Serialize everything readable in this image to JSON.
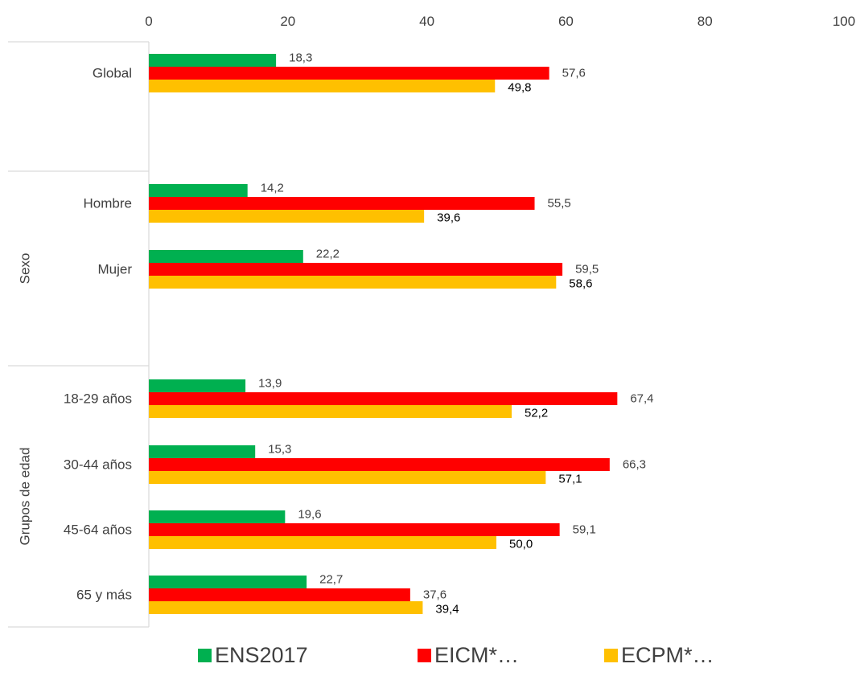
{
  "chart_data": {
    "type": "bar",
    "orientation": "horizontal",
    "xlim": [
      0,
      100
    ],
    "x_ticks": [
      "0",
      "20",
      "40",
      "60",
      "80",
      "100"
    ],
    "x_tick_values": [
      0,
      20,
      40,
      60,
      80,
      100
    ],
    "x_axis_position": "top",
    "grid": false,
    "legend_position": "bottom",
    "categories": [
      {
        "label": "Global",
        "group": ""
      },
      {
        "label": "Hombre",
        "group": "Sexo"
      },
      {
        "label": "Mujer",
        "group": "Sexo"
      },
      {
        "label": "18-29 años",
        "group": "Grupos de edad"
      },
      {
        "label": "30-44 años",
        "group": "Grupos de edad"
      },
      {
        "label": "45-64 años",
        "group": "Grupos de edad"
      },
      {
        "label": "65 y más",
        "group": "Grupos de edad"
      }
    ],
    "groups": [
      {
        "label": "",
        "categories": [
          "Global"
        ]
      },
      {
        "label": "Sexo",
        "categories": [
          "Hombre",
          "Mujer"
        ]
      },
      {
        "label": "Grupos de edad",
        "categories": [
          "18-29 años",
          "30-44 años",
          "45-64 años",
          "65 y más"
        ]
      }
    ],
    "series": [
      {
        "name": "ENS2017",
        "color": "#00b050",
        "label_color": "#404040",
        "values": [
          18.3,
          14.2,
          22.2,
          13.9,
          15.3,
          19.6,
          22.7
        ],
        "labels": [
          "18,3",
          "14,2",
          "22,2",
          "13,9",
          "15,3",
          "19,6",
          "22,7"
        ]
      },
      {
        "name": "EICM*…",
        "color": "#ff0000",
        "label_color": "#404040",
        "values": [
          57.6,
          55.5,
          59.5,
          67.4,
          66.3,
          59.1,
          37.6
        ],
        "labels": [
          "57,6",
          "55,5",
          "59,5",
          "67,4",
          "66,3",
          "59,1",
          "37,6"
        ]
      },
      {
        "name": "ECPM*…",
        "color": "#ffc000",
        "label_color": "#000000",
        "values": [
          49.8,
          39.6,
          58.6,
          52.2,
          57.1,
          50.0,
          39.4
        ],
        "labels": [
          "49,8",
          "39,6",
          "58,6",
          "52,2",
          "57,1",
          "50,0",
          "39,4"
        ]
      }
    ]
  }
}
